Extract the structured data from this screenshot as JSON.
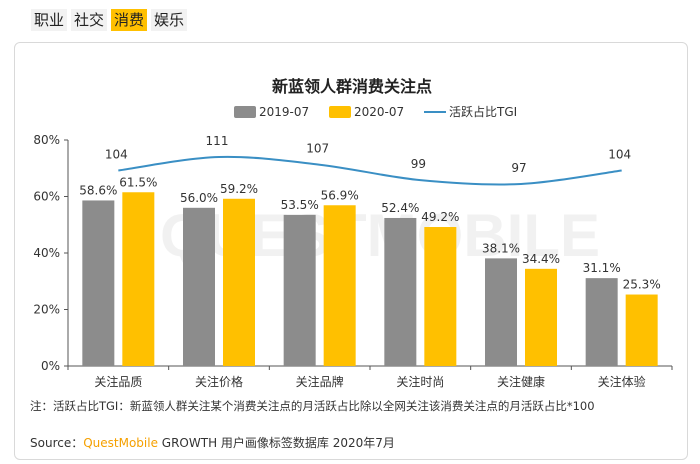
{
  "tabs": [
    "职业",
    "社交",
    "消费",
    "娱乐"
  ],
  "active_tab": 2,
  "watermark": "QUESTMOBILE",
  "chart_data": {
    "type": "bar",
    "title": "新蓝领人群消费关注点",
    "categories": [
      "关注品质",
      "关注价格",
      "关注品牌",
      "关注时尚",
      "关注健康",
      "关注体验"
    ],
    "series": [
      {
        "name": "2019-07",
        "type": "bar",
        "color": "#8c8c8c",
        "values": [
          58.6,
          56.0,
          53.5,
          52.4,
          38.1,
          31.1
        ],
        "labels": [
          "58.6%",
          "56.0%",
          "53.5%",
          "52.4%",
          "38.1%",
          "31.1%"
        ]
      },
      {
        "name": "2020-07",
        "type": "bar",
        "color": "#ffc000",
        "values": [
          61.5,
          59.2,
          56.9,
          49.2,
          34.4,
          25.3
        ],
        "labels": [
          "61.5%",
          "59.2%",
          "56.9%",
          "49.2%",
          "34.4%",
          "25.3%"
        ]
      },
      {
        "name": "活跃占比TGI",
        "type": "line",
        "color": "#3a8fc4",
        "values": [
          104,
          111,
          107,
          99,
          97,
          104
        ],
        "labels": [
          "104",
          "111",
          "107",
          "99",
          "97",
          "104"
        ]
      }
    ],
    "yaxis": {
      "min": 0,
      "max": 80,
      "ticks": [
        "0%",
        "20%",
        "40%",
        "60%",
        "80%"
      ]
    },
    "legend_position": "top-center",
    "grid": false
  },
  "note": "注：活跃占比TGI：新蓝领人群关注某个消费关注点的月活跃占比除以全网关注该消费关注点的月活跃占比*100",
  "source": {
    "prefix": "Source：",
    "brand": "QuestMobile",
    "suffix": " GROWTH 用户画像标签数据库 2020年7月"
  }
}
